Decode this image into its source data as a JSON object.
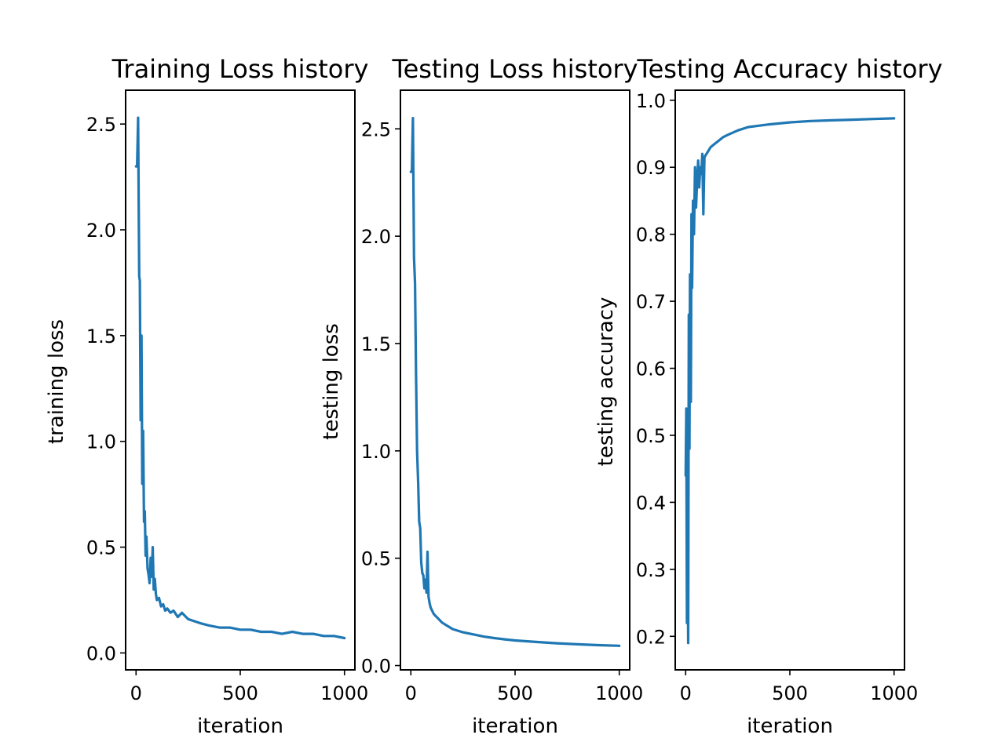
{
  "chart_data": [
    {
      "type": "line",
      "title": "Training Loss history",
      "xlabel": "iteration",
      "ylabel": "training loss",
      "xlim": [
        -50,
        1050
      ],
      "ylim": [
        -0.08,
        2.66
      ],
      "xticks": [
        0,
        500,
        1000
      ],
      "xtick_labels": [
        "0",
        "500",
        "1000"
      ],
      "yticks": [
        0.0,
        0.5,
        1.0,
        1.5,
        2.0,
        2.5
      ],
      "ytick_labels": [
        "0.0",
        "0.5",
        "1.0",
        "1.5",
        "2.0",
        "2.5"
      ],
      "grid": false,
      "series": [
        {
          "color": "#1f77b4",
          "x": [
            0,
            5,
            10,
            15,
            18,
            22,
            26,
            30,
            34,
            38,
            42,
            46,
            50,
            55,
            60,
            65,
            70,
            75,
            80,
            85,
            90,
            95,
            100,
            110,
            120,
            130,
            140,
            150,
            165,
            180,
            200,
            220,
            250,
            280,
            310,
            350,
            400,
            450,
            500,
            550,
            600,
            650,
            700,
            750,
            800,
            850,
            900,
            950,
            1000
          ],
          "y": [
            2.3,
            2.3,
            2.53,
            1.78,
            1.76,
            1.1,
            1.5,
            0.8,
            1.05,
            0.62,
            0.67,
            0.46,
            0.55,
            0.4,
            0.37,
            0.33,
            0.45,
            0.36,
            0.5,
            0.3,
            0.35,
            0.28,
            0.25,
            0.26,
            0.22,
            0.23,
            0.2,
            0.21,
            0.19,
            0.2,
            0.17,
            0.19,
            0.16,
            0.15,
            0.14,
            0.13,
            0.12,
            0.12,
            0.11,
            0.11,
            0.1,
            0.1,
            0.09,
            0.1,
            0.09,
            0.09,
            0.08,
            0.08,
            0.07
          ]
        }
      ]
    },
    {
      "type": "line",
      "title": "Testing Loss history",
      "xlabel": "iteration",
      "ylabel": "testing loss",
      "xlim": [
        -50,
        1050
      ],
      "ylim": [
        -0.02,
        2.68
      ],
      "xticks": [
        0,
        500,
        1000
      ],
      "xtick_labels": [
        "0",
        "500",
        "1000"
      ],
      "yticks": [
        0.0,
        0.5,
        1.0,
        1.5,
        2.0,
        2.5
      ],
      "ytick_labels": [
        "0.0",
        "0.5",
        "1.0",
        "1.5",
        "2.0",
        "2.5"
      ],
      "grid": false,
      "series": [
        {
          "color": "#1f77b4",
          "x": [
            0,
            5,
            10,
            15,
            20,
            25,
            30,
            35,
            40,
            45,
            50,
            55,
            60,
            65,
            70,
            75,
            80,
            85,
            90,
            95,
            100,
            110,
            120,
            130,
            140,
            150,
            175,
            200,
            250,
            300,
            350,
            400,
            450,
            500,
            600,
            700,
            800,
            900,
            1000
          ],
          "y": [
            2.3,
            2.3,
            2.55,
            1.9,
            1.78,
            1.35,
            1.0,
            0.85,
            0.67,
            0.64,
            0.48,
            0.43,
            0.42,
            0.36,
            0.4,
            0.34,
            0.53,
            0.32,
            0.29,
            0.27,
            0.26,
            0.24,
            0.23,
            0.22,
            0.21,
            0.2,
            0.185,
            0.17,
            0.155,
            0.145,
            0.135,
            0.128,
            0.122,
            0.117,
            0.11,
            0.104,
            0.099,
            0.095,
            0.092
          ]
        }
      ]
    },
    {
      "type": "line",
      "title": "Testing Accuracy history",
      "xlabel": "iteration",
      "ylabel": "testing accuracy",
      "xlim": [
        -50,
        1050
      ],
      "ylim": [
        0.15,
        1.015
      ],
      "xticks": [
        0,
        500,
        1000
      ],
      "xtick_labels": [
        "0",
        "500",
        "1000"
      ],
      "yticks": [
        0.2,
        0.3,
        0.4,
        0.5,
        0.6,
        0.7,
        0.8,
        0.9,
        1.0
      ],
      "ytick_labels": [
        "0.2",
        "0.3",
        "0.4",
        "0.5",
        "0.6",
        "0.7",
        "0.8",
        "0.9",
        "1.0"
      ],
      "grid": false,
      "series": [
        {
          "color": "#1f77b4",
          "x": [
            0,
            3,
            6,
            9,
            12,
            15,
            18,
            21,
            25,
            28,
            31,
            35,
            40,
            45,
            50,
            55,
            60,
            65,
            70,
            75,
            80,
            85,
            90,
            100,
            110,
            120,
            140,
            160,
            180,
            200,
            250,
            300,
            350,
            400,
            500,
            600,
            700,
            800,
            900,
            1000
          ],
          "y": [
            0.44,
            0.54,
            0.22,
            0.38,
            0.19,
            0.68,
            0.48,
            0.74,
            0.55,
            0.83,
            0.72,
            0.85,
            0.8,
            0.9,
            0.84,
            0.88,
            0.91,
            0.87,
            0.9,
            0.89,
            0.92,
            0.83,
            0.915,
            0.92,
            0.925,
            0.93,
            0.935,
            0.94,
            0.945,
            0.948,
            0.955,
            0.96,
            0.962,
            0.964,
            0.967,
            0.969,
            0.97,
            0.971,
            0.972,
            0.973
          ]
        }
      ]
    }
  ]
}
